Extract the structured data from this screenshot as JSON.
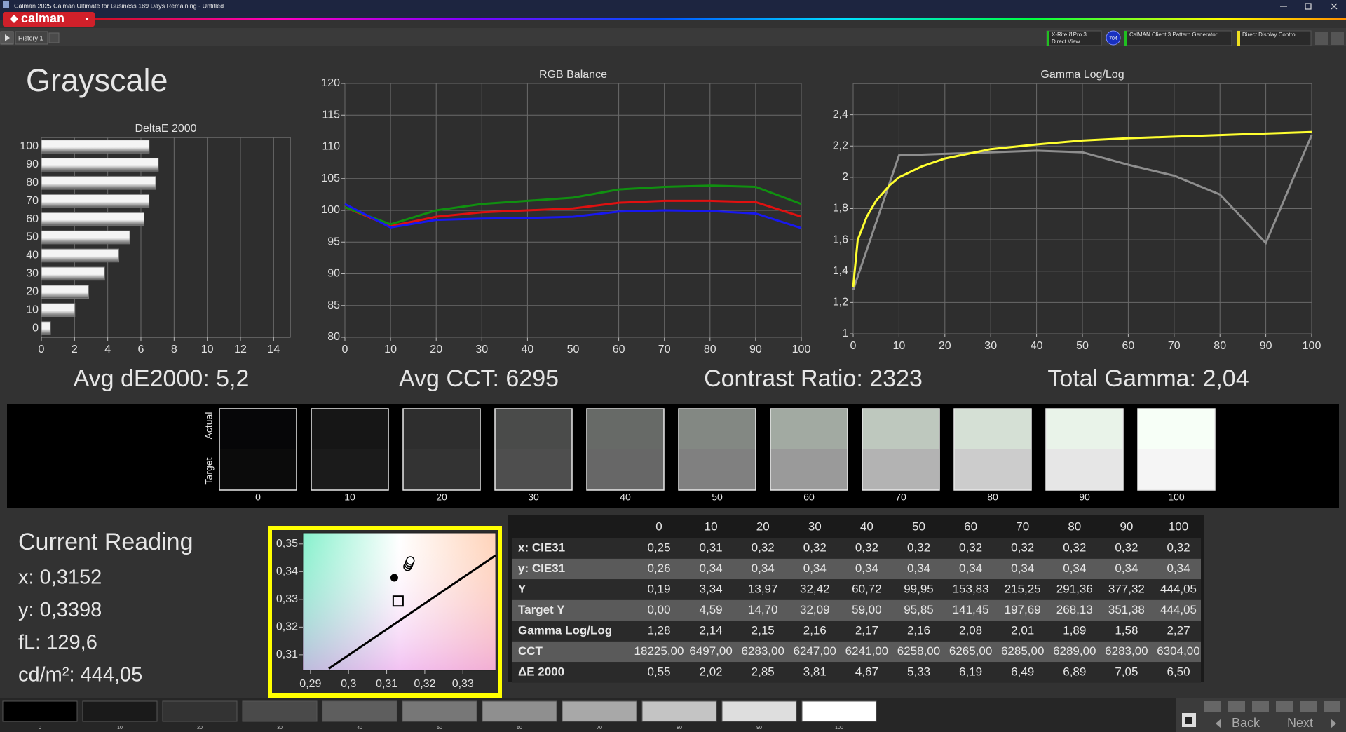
{
  "window": {
    "title": "Calman 2025 Calman Ultimate for Business 189 Days Remaining  - Untitled",
    "logo": "calman",
    "tab": "History 1",
    "meter": "X-Rite i1Pro 3",
    "meter_mode": "Direct View",
    "badge": "704",
    "pattern": "CalMAN Client 3 Pattern Generator",
    "display": "Direct Display Control"
  },
  "page_title": "Grayscale",
  "chart_data": [
    {
      "type": "bar",
      "orientation": "horizontal",
      "title": "DeltaE 2000",
      "categories": [
        "100",
        "90",
        "80",
        "70",
        "60",
        "50",
        "40",
        "30",
        "20",
        "10",
        "0"
      ],
      "values": [
        6.5,
        7.05,
        6.89,
        6.49,
        6.19,
        5.33,
        4.67,
        3.81,
        2.85,
        2.02,
        0.55
      ],
      "color": "#f4f4f4",
      "xlim": [
        0,
        15
      ],
      "xticks": [
        0,
        2,
        4,
        6,
        8,
        10,
        12,
        14
      ],
      "grid": true
    },
    {
      "type": "line",
      "title": "RGB Balance",
      "x": [
        0,
        10,
        20,
        30,
        40,
        50,
        60,
        70,
        80,
        90,
        100
      ],
      "series": [
        {
          "color": "#e01010",
          "values": [
            100.5,
            97.5,
            99,
            99.7,
            100,
            100.3,
            101.2,
            101.5,
            101.5,
            101.3,
            99
          ]
        },
        {
          "color": "#109010",
          "values": [
            100.5,
            97.8,
            100,
            101,
            101.5,
            102,
            103.3,
            103.7,
            103.9,
            103.7,
            101
          ]
        },
        {
          "color": "#1818f0",
          "values": [
            101,
            97.3,
            98.5,
            98.7,
            98.8,
            99,
            99.8,
            100,
            99.9,
            99.5,
            97.2
          ]
        }
      ],
      "xlim": [
        0,
        100
      ],
      "ylim": [
        80,
        120
      ],
      "xticks": [
        0,
        10,
        20,
        30,
        40,
        50,
        60,
        70,
        80,
        90,
        100
      ],
      "yticks": [
        80,
        85,
        90,
        95,
        100,
        105,
        110,
        115,
        120
      ],
      "grid": true
    },
    {
      "type": "line",
      "title": "Gamma Log/Log",
      "x": [
        0,
        10,
        20,
        30,
        40,
        50,
        60,
        70,
        80,
        90,
        100
      ],
      "series": [
        {
          "color": "#8e8e8e",
          "values": [
            1.28,
            2.14,
            2.15,
            2.16,
            2.17,
            2.16,
            2.08,
            2.01,
            1.89,
            1.58,
            2.27
          ]
        },
        {
          "color": "#ffff30",
          "x": [
            0,
            1,
            3,
            5,
            8,
            10,
            15,
            20,
            30,
            40,
            50,
            60,
            70,
            80,
            90,
            100
          ],
          "values": [
            1.3,
            1.6,
            1.75,
            1.85,
            1.95,
            2.0,
            2.07,
            2.12,
            2.18,
            2.21,
            2.235,
            2.25,
            2.26,
            2.27,
            2.28,
            2.29
          ]
        }
      ],
      "xlim": [
        0,
        100
      ],
      "ylim": [
        1,
        2.6
      ],
      "xticks": [
        0,
        10,
        20,
        30,
        40,
        50,
        60,
        70,
        80,
        90,
        100
      ],
      "yticks": [
        1,
        {
          "value": 1.2,
          "label": "1,2"
        },
        {
          "value": 1.4,
          "label": "1,4"
        },
        {
          "value": 1.6,
          "label": "1,6"
        },
        {
          "value": 1.8,
          "label": "1,8"
        },
        2,
        {
          "value": 2.2,
          "label": "2,2"
        },
        {
          "value": 2.4,
          "label": "2,4"
        }
      ],
      "grid": true
    },
    {
      "type": "scatter",
      "series": [
        {
          "kind": "line",
          "color": "#000000",
          "x": [
            0.2948,
            0.3386
          ],
          "values": [
            0.305,
            0.3459
          ]
        },
        {
          "kind": "dot",
          "color": "#000000",
          "x": [
            0.312
          ],
          "values": [
            0.3378
          ]
        },
        {
          "kind": "circle",
          "color": "#000000",
          "x": [
            0.3155,
            0.3158,
            0.316,
            0.3162
          ],
          "values": [
            0.3418,
            0.3426,
            0.3433,
            0.344
          ]
        },
        {
          "kind": "square",
          "color": "#000000",
          "x": [
            0.313
          ],
          "values": [
            0.3294
          ]
        }
      ],
      "xlim": [
        0.288,
        0.3386
      ],
      "ylim": [
        0.3044,
        0.354
      ],
      "xticks": [
        {
          "value": 0.29,
          "label": "0,29"
        },
        {
          "value": 0.3,
          "label": "0,3"
        },
        {
          "value": 0.31,
          "label": "0,31"
        },
        {
          "value": 0.32,
          "label": "0,32"
        },
        {
          "value": 0.33,
          "label": "0,33"
        }
      ],
      "yticks": [
        {
          "value": 0.31,
          "label": "0,31"
        },
        {
          "value": 0.32,
          "label": "0,32"
        },
        {
          "value": 0.33,
          "label": "0,33"
        },
        {
          "value": 0.34,
          "label": "0,34"
        },
        {
          "value": 0.35,
          "label": "0,35"
        }
      ],
      "grid": false
    }
  ],
  "summary": [
    "Avg dE2000: 5,2",
    "Avg CCT: 6295",
    "Contrast Ratio: 2323",
    "Total Gamma: 2,04"
  ],
  "swatches": {
    "actual_label": "Actual",
    "target_label": "Target",
    "items": [
      {
        "label": "0",
        "actual": "#060608",
        "target": "#0b0b0b",
        "button": "#000000"
      },
      {
        "label": "10",
        "actual": "#161616",
        "target": "#1b1b1b",
        "button": "#1a1a1a"
      },
      {
        "label": "20",
        "actual": "#2e2e2e",
        "target": "#333333",
        "button": "#333333"
      },
      {
        "label": "30",
        "actual": "#4a4b4a",
        "target": "#4e4e4e",
        "button": "#4a4a4a"
      },
      {
        "label": "40",
        "actual": "#676a67",
        "target": "#676767",
        "button": "#5e5e5e"
      },
      {
        "label": "50",
        "actual": "#838883",
        "target": "#808080",
        "button": "#777777"
      },
      {
        "label": "60",
        "actual": "#a2aaa2",
        "target": "#9a9a9a",
        "button": "#8f8f8f"
      },
      {
        "label": "70",
        "actual": "#bec8be",
        "target": "#b3b3b3",
        "button": "#a8a8a8"
      },
      {
        "label": "80",
        "actual": "#d5e0d5",
        "target": "#cccccc",
        "button": "#c4c4c4"
      },
      {
        "label": "90",
        "actual": "#e9f3e9",
        "target": "#e6e6e6",
        "button": "#dedede"
      },
      {
        "label": "100",
        "actual": "#f7fff7",
        "target": "#f5f5f5",
        "button": "#ffffff"
      }
    ]
  },
  "current_reading": {
    "title": "Current Reading",
    "lines": [
      "x: 0,3152",
      "y: 0,3398",
      "fL: 129,6",
      "cd/m²: 444,05"
    ]
  },
  "table": {
    "columns": [
      "0",
      "10",
      "20",
      "30",
      "40",
      "50",
      "60",
      "70",
      "80",
      "90",
      "100"
    ],
    "rows": [
      {
        "label": "x: CIE31",
        "cells": [
          "0,25",
          "0,31",
          "0,32",
          "0,32",
          "0,32",
          "0,32",
          "0,32",
          "0,32",
          "0,32",
          "0,32",
          "0,32"
        ]
      },
      {
        "label": "y: CIE31",
        "cells": [
          "0,26",
          "0,34",
          "0,34",
          "0,34",
          "0,34",
          "0,34",
          "0,34",
          "0,34",
          "0,34",
          "0,34",
          "0,34"
        ]
      },
      {
        "label": "Y",
        "cells": [
          "0,19",
          "3,34",
          "13,97",
          "32,42",
          "60,72",
          "99,95",
          "153,83",
          "215,25",
          "291,36",
          "377,32",
          "444,05"
        ]
      },
      {
        "label": "Target Y",
        "cells": [
          "0,00",
          "4,59",
          "14,70",
          "32,09",
          "59,00",
          "95,85",
          "141,45",
          "197,69",
          "268,13",
          "351,38",
          "444,05"
        ]
      },
      {
        "label": "Gamma Log/Log",
        "cells": [
          "1,28",
          "2,14",
          "2,15",
          "2,16",
          "2,17",
          "2,16",
          "2,08",
          "2,01",
          "1,89",
          "1,58",
          "2,27"
        ]
      },
      {
        "label": "CCT",
        "cells": [
          "18225,00",
          "6497,00",
          "6283,00",
          "6247,00",
          "6241,00",
          "6258,00",
          "6265,00",
          "6285,00",
          "6289,00",
          "6283,00",
          "6304,00"
        ]
      },
      {
        "label": "ΔE 2000",
        "cells": [
          "0,55",
          "2,02",
          "2,85",
          "3,81",
          "4,67",
          "5,33",
          "6,19",
          "6,49",
          "6,89",
          "7,05",
          "6,50"
        ]
      }
    ]
  },
  "nav": {
    "back": "Back",
    "next": "Next"
  }
}
